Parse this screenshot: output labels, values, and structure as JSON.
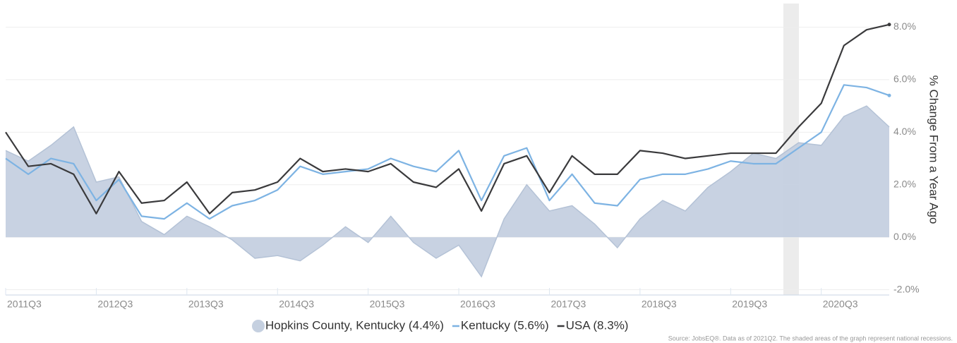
{
  "chart_data": {
    "type": "area-line",
    "y_axis_label": "% Change From a Year Ago",
    "source": "Source: JobsEQ®. Data as of 2021Q2. The shaded areas of the graph represent national recessions.",
    "categories": [
      "2011Q3",
      null,
      null,
      null,
      "2012Q3",
      null,
      null,
      null,
      "2013Q3",
      null,
      null,
      null,
      "2014Q3",
      null,
      null,
      null,
      "2015Q3",
      null,
      null,
      null,
      "2016Q3",
      null,
      null,
      null,
      "2017Q3",
      null,
      null,
      null,
      "2018Q3",
      null,
      null,
      null,
      "2019Q3",
      null,
      null,
      null,
      "2020Q3",
      null,
      null,
      null
    ],
    "series": [
      {
        "name": "Hopkins County, Kentucky (4.4%)",
        "kind": "area",
        "color": "#c5d0e0",
        "values": [
          3.3,
          2.9,
          3.5,
          4.2,
          2.1,
          2.3,
          0.6,
          0.1,
          0.8,
          0.4,
          -0.1,
          -0.8,
          -0.7,
          -0.9,
          -0.3,
          0.4,
          -0.2,
          0.8,
          -0.2,
          -0.8,
          -0.3,
          -1.5,
          0.7,
          2.0,
          1.0,
          1.2,
          0.5,
          -0.4,
          0.7,
          1.4,
          1.0,
          1.9,
          2.5,
          3.2,
          3.0,
          3.6,
          3.5,
          4.6,
          5.0,
          4.2
        ]
      },
      {
        "name": "Kentucky (5.6%)",
        "kind": "line",
        "color": "#7db3e3",
        "values": [
          3.0,
          2.4,
          3.0,
          2.8,
          1.4,
          2.2,
          0.8,
          0.7,
          1.3,
          0.7,
          1.2,
          1.4,
          1.8,
          2.7,
          2.4,
          2.5,
          2.6,
          3.0,
          2.7,
          2.5,
          3.3,
          1.4,
          3.1,
          3.4,
          1.4,
          2.4,
          1.3,
          1.2,
          2.2,
          2.4,
          2.4,
          2.6,
          2.9,
          2.8,
          2.8,
          3.4,
          4.0,
          5.8,
          5.7,
          5.4
        ]
      },
      {
        "name": "USA (8.3%)",
        "kind": "line",
        "color": "#3a3a3c",
        "values": [
          4.0,
          2.7,
          2.8,
          2.4,
          0.9,
          2.5,
          1.3,
          1.4,
          2.1,
          0.9,
          1.7,
          1.8,
          2.1,
          3.0,
          2.5,
          2.6,
          2.5,
          2.8,
          2.1,
          1.9,
          2.6,
          1.0,
          2.8,
          3.1,
          1.7,
          3.1,
          2.4,
          2.4,
          3.3,
          3.2,
          3.0,
          3.1,
          3.2,
          3.2,
          3.2,
          4.2,
          5.1,
          7.3,
          7.9,
          8.1
        ]
      }
    ],
    "ylim": [
      -2.2,
      8.9
    ],
    "yticks": [
      {
        "value": -2,
        "label": "-2.0%"
      },
      {
        "value": 0,
        "label": "0.0%"
      },
      {
        "value": 2,
        "label": "2.0%"
      },
      {
        "value": 4,
        "label": "4.0%"
      },
      {
        "value": 6,
        "label": "6.0%"
      },
      {
        "value": 8,
        "label": "8.0%"
      }
    ],
    "grid": true
  }
}
